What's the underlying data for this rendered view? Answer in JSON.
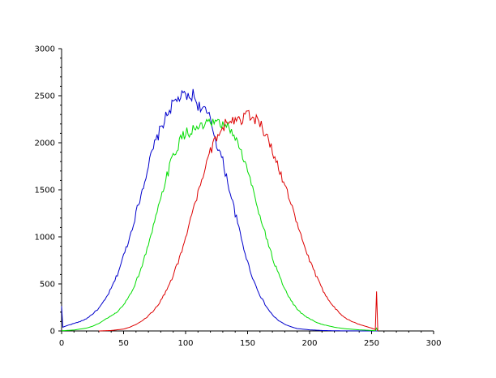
{
  "chart_data": {
    "type": "line",
    "title": "",
    "xlabel": "",
    "ylabel": "",
    "xlim": [
      0,
      300
    ],
    "ylim": [
      0,
      3000
    ],
    "x_ticks": [
      0,
      50,
      100,
      150,
      200,
      250,
      300
    ],
    "y_ticks": [
      0,
      500,
      1000,
      1500,
      2000,
      2500,
      3000
    ],
    "grid": false,
    "legend": "none",
    "series": [
      {
        "color": "#0000cc",
        "points": [
          [
            0,
            260
          ],
          [
            1,
            40
          ],
          [
            5,
            60
          ],
          [
            10,
            80
          ],
          [
            15,
            100
          ],
          [
            20,
            130
          ],
          [
            25,
            180
          ],
          [
            30,
            240
          ],
          [
            35,
            330
          ],
          [
            40,
            450
          ],
          [
            45,
            600
          ],
          [
            50,
            800
          ],
          [
            55,
            1000
          ],
          [
            60,
            1250
          ],
          [
            65,
            1500
          ],
          [
            70,
            1760
          ],
          [
            75,
            1980
          ],
          [
            80,
            2150
          ],
          [
            85,
            2300
          ],
          [
            90,
            2420
          ],
          [
            95,
            2480
          ],
          [
            100,
            2510
          ],
          [
            103,
            2460
          ],
          [
            106,
            2520
          ],
          [
            110,
            2400
          ],
          [
            115,
            2350
          ],
          [
            120,
            2250
          ],
          [
            125,
            2000
          ],
          [
            130,
            1800
          ],
          [
            135,
            1530
          ],
          [
            140,
            1250
          ],
          [
            145,
            980
          ],
          [
            150,
            730
          ],
          [
            155,
            530
          ],
          [
            160,
            380
          ],
          [
            165,
            260
          ],
          [
            170,
            170
          ],
          [
            175,
            110
          ],
          [
            180,
            70
          ],
          [
            185,
            45
          ],
          [
            190,
            25
          ],
          [
            200,
            12
          ],
          [
            210,
            5
          ],
          [
            220,
            2
          ],
          [
            230,
            1
          ],
          [
            255,
            0
          ]
        ]
      },
      {
        "color": "#00dd00",
        "points": [
          [
            0,
            2
          ],
          [
            10,
            10
          ],
          [
            20,
            30
          ],
          [
            25,
            50
          ],
          [
            30,
            80
          ],
          [
            35,
            120
          ],
          [
            40,
            160
          ],
          [
            45,
            200
          ],
          [
            50,
            280
          ],
          [
            55,
            380
          ],
          [
            60,
            520
          ],
          [
            65,
            700
          ],
          [
            70,
            920
          ],
          [
            75,
            1150
          ],
          [
            80,
            1400
          ],
          [
            85,
            1650
          ],
          [
            90,
            1860
          ],
          [
            95,
            2010
          ],
          [
            100,
            2100
          ],
          [
            105,
            2130
          ],
          [
            110,
            2160
          ],
          [
            115,
            2180
          ],
          [
            120,
            2200
          ],
          [
            125,
            2210
          ],
          [
            130,
            2180
          ],
          [
            135,
            2160
          ],
          [
            140,
            2060
          ],
          [
            145,
            1900
          ],
          [
            150,
            1700
          ],
          [
            155,
            1470
          ],
          [
            160,
            1230
          ],
          [
            165,
            1000
          ],
          [
            170,
            780
          ],
          [
            175,
            600
          ],
          [
            180,
            440
          ],
          [
            185,
            320
          ],
          [
            190,
            230
          ],
          [
            195,
            170
          ],
          [
            200,
            130
          ],
          [
            205,
            95
          ],
          [
            210,
            70
          ],
          [
            215,
            55
          ],
          [
            220,
            40
          ],
          [
            225,
            30
          ],
          [
            230,
            22
          ],
          [
            240,
            12
          ],
          [
            250,
            5
          ],
          [
            253,
            2
          ],
          [
            254,
            30
          ],
          [
            255,
            0
          ]
        ]
      },
      {
        "color": "#dd0000",
        "points": [
          [
            30,
            0
          ],
          [
            40,
            5
          ],
          [
            50,
            20
          ],
          [
            55,
            40
          ],
          [
            60,
            70
          ],
          [
            65,
            110
          ],
          [
            70,
            160
          ],
          [
            75,
            230
          ],
          [
            80,
            320
          ],
          [
            85,
            440
          ],
          [
            90,
            590
          ],
          [
            95,
            770
          ],
          [
            100,
            990
          ],
          [
            105,
            1230
          ],
          [
            110,
            1460
          ],
          [
            115,
            1700
          ],
          [
            120,
            1900
          ],
          [
            125,
            2060
          ],
          [
            130,
            2170
          ],
          [
            135,
            2240
          ],
          [
            140,
            2260
          ],
          [
            145,
            2250
          ],
          [
            150,
            2300
          ],
          [
            155,
            2270
          ],
          [
            160,
            2200
          ],
          [
            165,
            2080
          ],
          [
            170,
            1920
          ],
          [
            175,
            1750
          ],
          [
            180,
            1550
          ],
          [
            185,
            1340
          ],
          [
            190,
            1130
          ],
          [
            195,
            930
          ],
          [
            200,
            750
          ],
          [
            205,
            590
          ],
          [
            210,
            450
          ],
          [
            215,
            340
          ],
          [
            220,
            250
          ],
          [
            225,
            180
          ],
          [
            230,
            130
          ],
          [
            235,
            95
          ],
          [
            240,
            70
          ],
          [
            245,
            50
          ],
          [
            250,
            30
          ],
          [
            253,
            15
          ],
          [
            254,
            420
          ],
          [
            255,
            0
          ]
        ]
      }
    ]
  }
}
